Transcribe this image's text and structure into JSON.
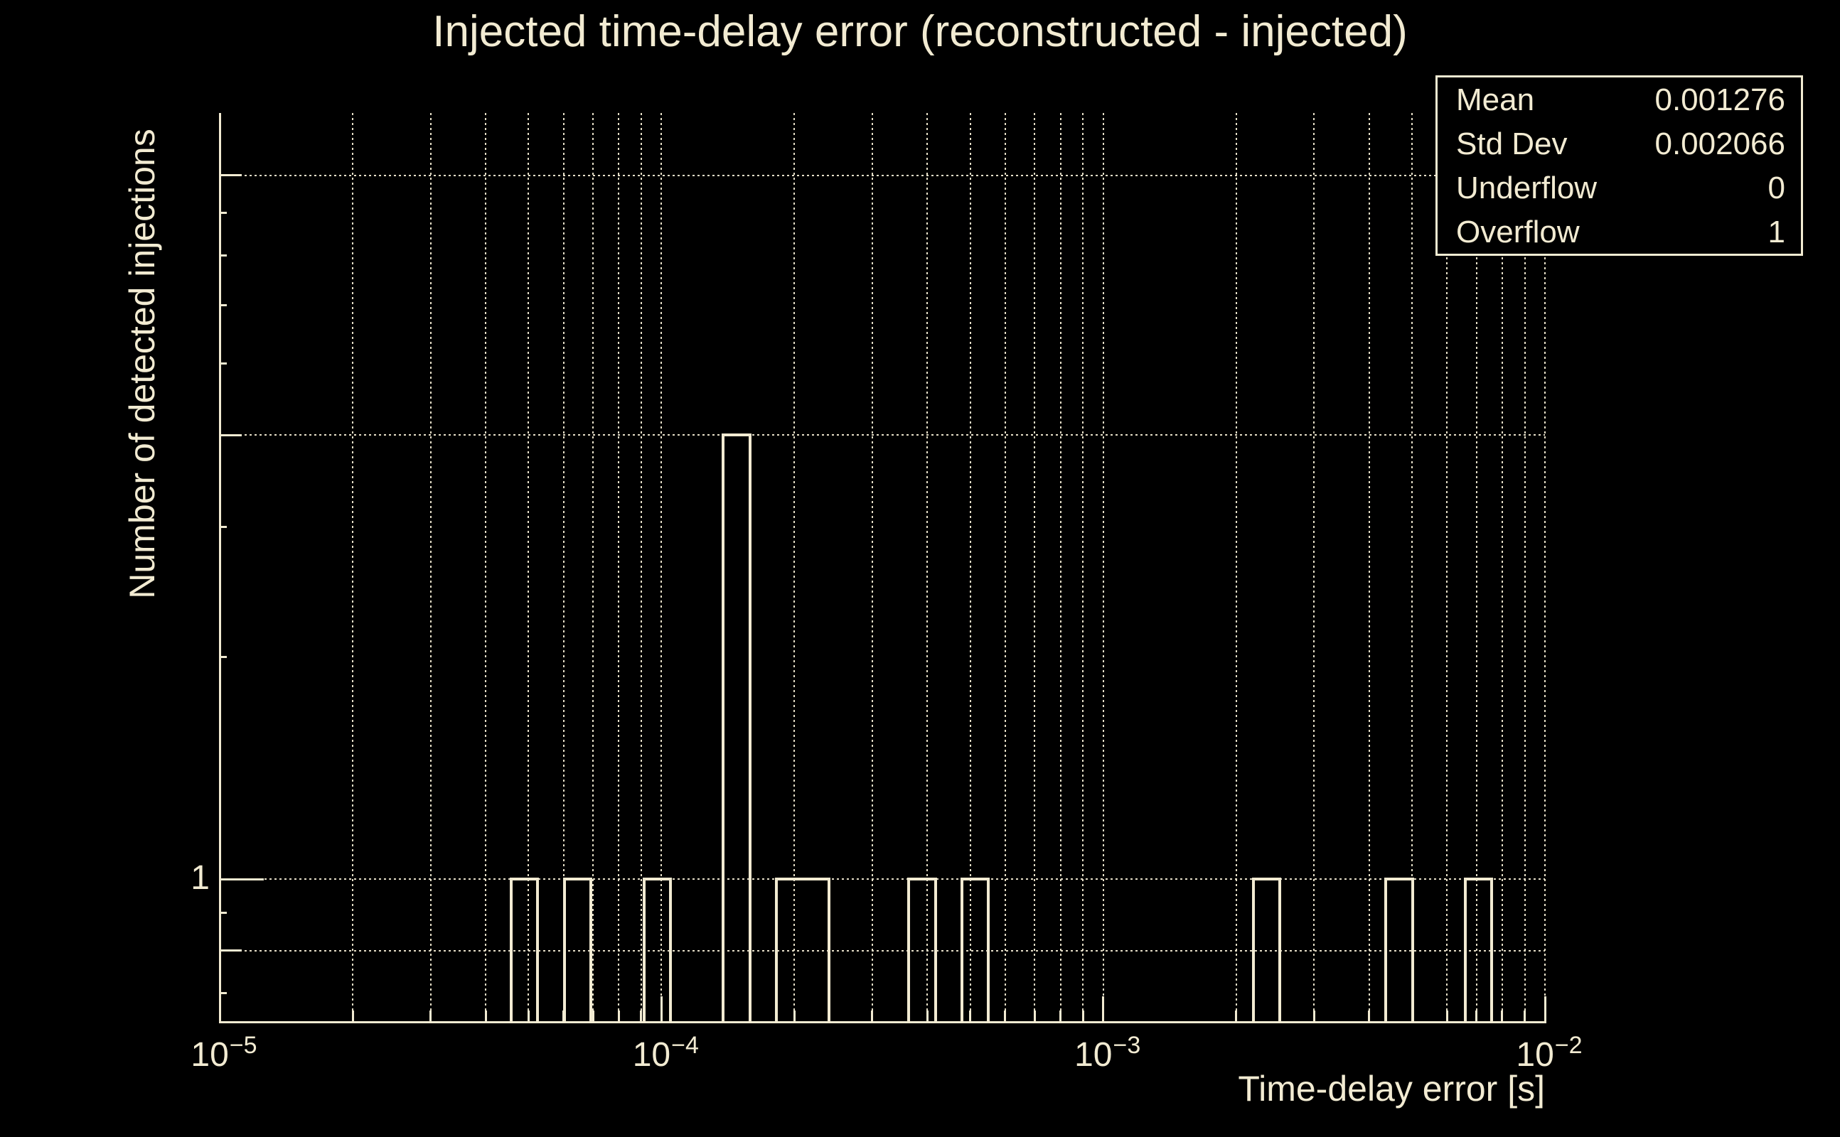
{
  "page": {
    "background_color": "#000000",
    "foreground_color": "#f2ebd2"
  },
  "title": "Injected time-delay error (reconstructed - injected)",
  "stats_box": {
    "rows": [
      {
        "label": "Mean",
        "value": "0.001276"
      },
      {
        "label": "Std Dev",
        "value": "0.002066"
      },
      {
        "label": "Underflow",
        "value": "0"
      },
      {
        "label": "Overflow",
        "value": "1"
      }
    ]
  },
  "chart_data": {
    "type": "bar",
    "subtype": "histogram-outline",
    "title": "Injected time-delay error (reconstructed - injected)",
    "xlabel": "Time-delay error [s]",
    "ylabel": "Number of detected injections",
    "x_scale": "log",
    "y_scale": "log",
    "xlim": [
      1e-05,
      0.01
    ],
    "ylim": [
      0.64,
      10.9
    ],
    "grid": "dotted",
    "legend_position": "none",
    "n_bins": 50,
    "bins_per_decade": 16.67,
    "x_major_ticks": [
      1e-05,
      0.0001,
      0.001,
      0.01
    ],
    "x_tick_labels": [
      {
        "value": 1e-05,
        "base": "10",
        "exp": "−5"
      },
      {
        "value": 0.0001,
        "base": "10",
        "exp": "−4"
      },
      {
        "value": 0.001,
        "base": "10",
        "exp": "−3"
      },
      {
        "value": 0.01,
        "base": "10",
        "exp": "−2"
      }
    ],
    "y_tick_labels": [
      {
        "value": 1,
        "text": "1"
      }
    ],
    "y_gridline_values": [
      9,
      4,
      1,
      0.8
    ],
    "y_medium_tick_values": [
      9,
      4,
      0.8
    ],
    "y_minor_tick_values": [
      0.7,
      0.9,
      2,
      3,
      5,
      6,
      7,
      8
    ],
    "bins": [
      {
        "x1": 4.571e-05,
        "x2": 5.248e-05,
        "count": 1
      },
      {
        "x1": 6.026e-05,
        "x2": 6.918e-05,
        "count": 1
      },
      {
        "x1": 9.12e-05,
        "x2": 0.00010471,
        "count": 1
      },
      {
        "x1": 0.00013804,
        "x2": 0.00015849,
        "count": 4
      },
      {
        "x1": 0.00018197,
        "x2": 0.00020893,
        "count": 1
      },
      {
        "x1": 0.00020893,
        "x2": 0.00023988,
        "count": 1
      },
      {
        "x1": 0.00036308,
        "x2": 0.00041687,
        "count": 1
      },
      {
        "x1": 0.00047863,
        "x2": 0.00054954,
        "count": 1
      },
      {
        "x1": 0.0021878,
        "x2": 0.0025119,
        "count": 1
      },
      {
        "x1": 0.0043652,
        "x2": 0.0050119,
        "count": 1
      },
      {
        "x1": 0.0066069,
        "x2": 0.0075858,
        "count": 1
      }
    ]
  }
}
